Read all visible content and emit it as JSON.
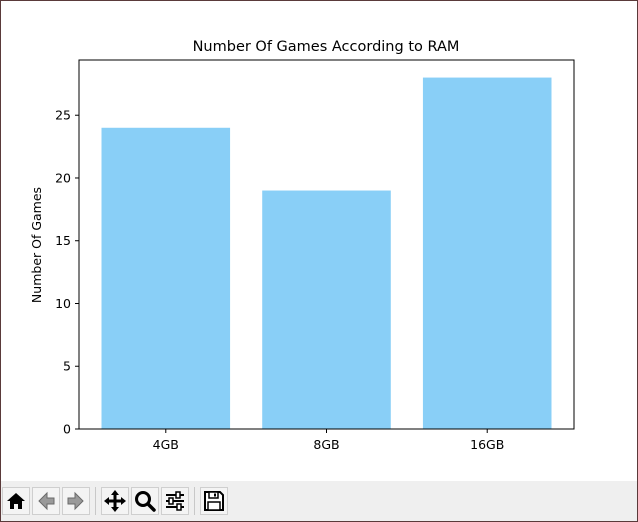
{
  "chart_data": {
    "type": "bar",
    "title": "Number Of Games According to RAM",
    "xlabel": "",
    "ylabel": "Number Of Games",
    "categories": [
      "4GB",
      "8GB",
      "16GB"
    ],
    "values": [
      24,
      19,
      28
    ],
    "ylim": [
      0,
      29.4
    ],
    "yticks": [
      0,
      5,
      10,
      15,
      20,
      25
    ],
    "bar_color": "#89cff7",
    "grid": false,
    "legend": "none"
  },
  "toolbar": {
    "buttons": [
      {
        "name": "home-button",
        "icon": "home-icon",
        "tooltip": "Home"
      },
      {
        "name": "back-button",
        "icon": "back-arrow-icon",
        "tooltip": "Back"
      },
      {
        "name": "forward-button",
        "icon": "forward-arrow-icon",
        "tooltip": "Forward"
      },
      {
        "name": "pan-button",
        "icon": "move-icon",
        "tooltip": "Pan"
      },
      {
        "name": "zoom-button",
        "icon": "magnifier-icon",
        "tooltip": "Zoom"
      },
      {
        "name": "configure-subplots-button",
        "icon": "sliders-icon",
        "tooltip": "Subplots"
      },
      {
        "name": "save-button",
        "icon": "floppy-disk-icon",
        "tooltip": "Save"
      }
    ]
  }
}
